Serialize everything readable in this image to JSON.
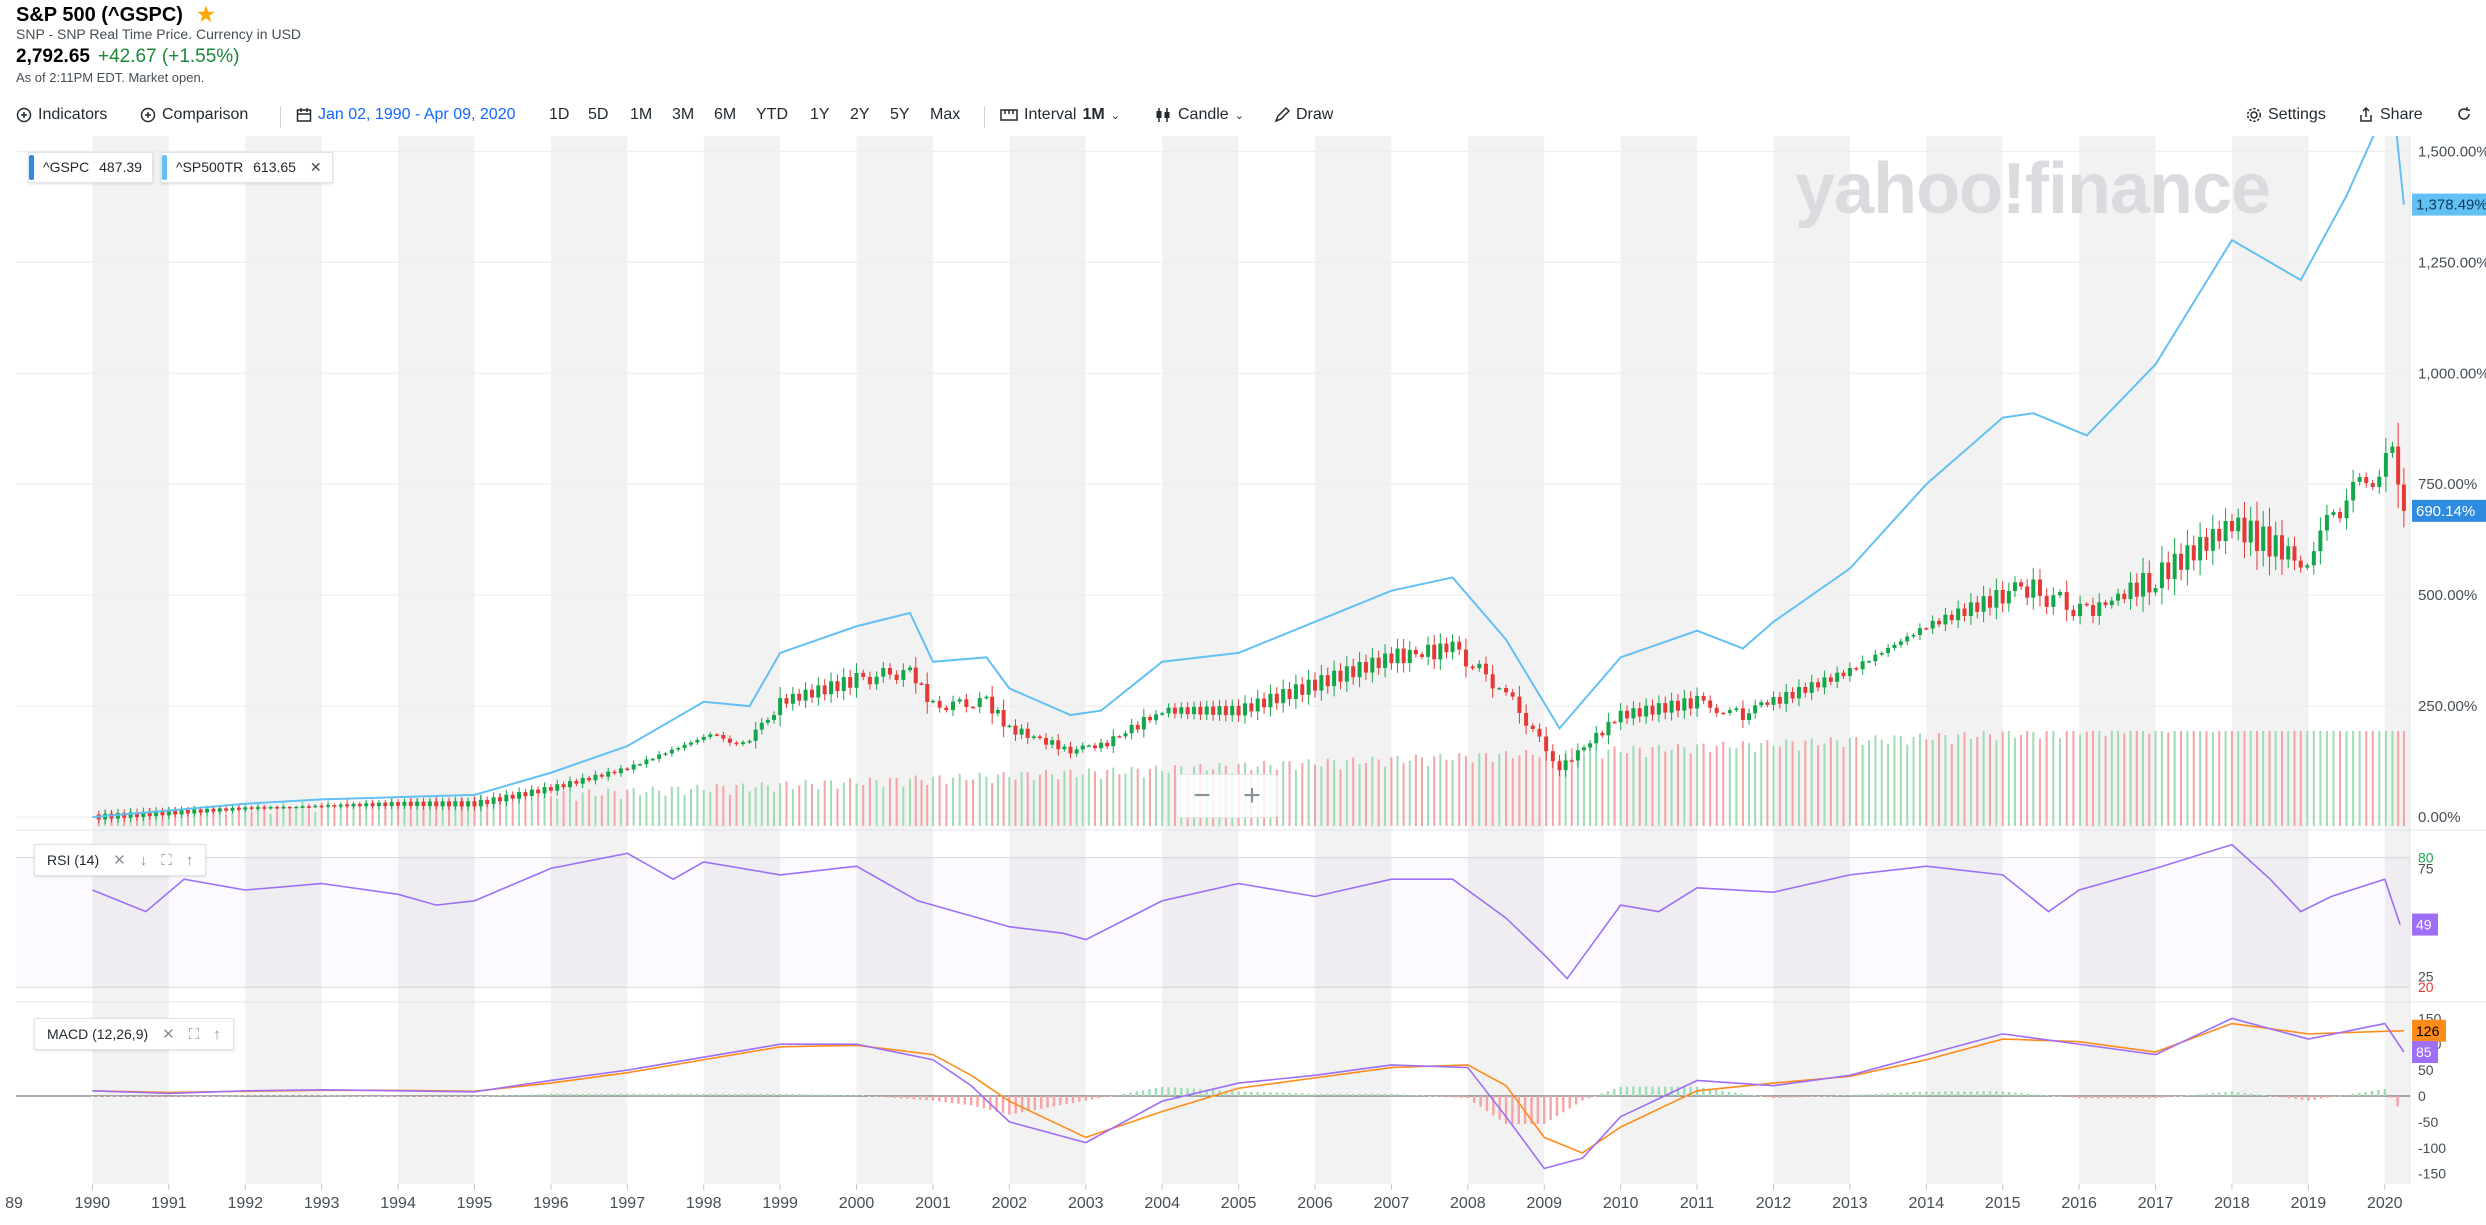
{
  "header": {
    "title": "S&P 500 (^GSPC)",
    "subtitle": "SNP - SNP Real Time Price. Currency in USD",
    "price": "2,792.65",
    "change": "+42.67 (+1.55%)",
    "as_of": "As of 2:11PM EDT. Market open."
  },
  "toolbar": {
    "indicators": "Indicators",
    "comparison": "Comparison",
    "date_range": "Jan 02, 1990 - Apr 09, 2020",
    "ranges": [
      "1D",
      "5D",
      "1M",
      "3M",
      "6M",
      "YTD",
      "1Y",
      "2Y",
      "5Y",
      "Max"
    ],
    "interval_label": "Interval",
    "interval_value": "1M",
    "chart_type": "Candle",
    "draw": "Draw",
    "settings": "Settings",
    "share": "Share"
  },
  "legend": {
    "gspc": {
      "symbol": "^GSPC",
      "value": "487.39",
      "close": ""
    },
    "sp500tr": {
      "symbol": "^SP500TR",
      "value": "613.65",
      "close": "✕"
    }
  },
  "indicators": {
    "rsi": {
      "label": "RSI (14)"
    },
    "macd": {
      "label": "MACD (12,26,9)"
    }
  },
  "watermark": "yahoo!finance",
  "zoom": {
    "minus": "−",
    "plus": "+"
  },
  "colors": {
    "gspc": "#2f8bdf",
    "sp500tr": "#63c0f2",
    "rsi": "#9f6ef7",
    "macd": "#9f6ef7",
    "signal": "#ff8c1a",
    "up": "#14a64b",
    "down": "#e53935",
    "grid": "#f2f2f2"
  },
  "chart_data": {
    "type": "line",
    "x_axis": {
      "tick_labels": [
        "1990",
        "1991",
        "1992",
        "1993",
        "1994",
        "1995",
        "1996",
        "1997",
        "1998",
        "1999",
        "2000",
        "2001",
        "2002",
        "2003",
        "2004",
        "2005",
        "2006",
        "2007",
        "2008",
        "2009",
        "2010",
        "2011",
        "2012",
        "2013",
        "2014",
        "2015",
        "2016",
        "2017",
        "2018",
        "2019",
        "2020"
      ],
      "first_label_shown": "89"
    },
    "price_panel": {
      "y_unit": "percent change",
      "y_ticks": [
        0,
        250,
        500,
        750,
        1000,
        1250,
        1500
      ],
      "y_tick_labels": [
        "0.00%",
        "250.00%",
        "500.00%",
        "750.00%",
        "1,000.00%",
        "1,250.00%",
        "1,500.00%"
      ],
      "ylim": [
        -20,
        1530
      ],
      "series": [
        {
          "name": "^GSPC",
          "style": "candle",
          "last_label": "690.14%",
          "x": [
            1990,
            1991,
            1992,
            1993,
            1994,
            1995,
            1996,
            1997,
            1998,
            1998.6,
            1999,
            2000,
            2000.7,
            2001,
            2001.7,
            2002,
            2002.8,
            2003.2,
            2004,
            2005,
            2006,
            2007,
            2007.8,
            2008.5,
            2009.2,
            2010,
            2011,
            2011.6,
            2012,
            2013,
            2014,
            2015,
            2015.4,
            2016.1,
            2017,
            2018,
            2018.9,
            2019.5,
            2020.1,
            2020.25
          ],
          "y": [
            0,
            10,
            20,
            25,
            30,
            30,
            65,
            110,
            180,
            170,
            260,
            310,
            330,
            250,
            260,
            200,
            150,
            160,
            240,
            240,
            300,
            360,
            380,
            280,
            110,
            230,
            260,
            230,
            260,
            330,
            430,
            500,
            510,
            460,
            540,
            660,
            580,
            700,
            840,
            690
          ]
        },
        {
          "name": "^SP500TR",
          "style": "line",
          "last_label": "1,378.49%",
          "x": [
            1990,
            1991,
            1992,
            1993,
            1994,
            1995,
            1996,
            1997,
            1998,
            1998.6,
            1999,
            2000,
            2000.7,
            2001,
            2001.7,
            2002,
            2002.8,
            2003.2,
            2004,
            2005,
            2006,
            2007,
            2007.8,
            2008.5,
            2009.2,
            2010,
            2011,
            2011.6,
            2012,
            2013,
            2014,
            2015,
            2015.4,
            2016.1,
            2017,
            2018,
            2018.9,
            2019.5,
            2020.1,
            2020.25
          ],
          "y": [
            0,
            15,
            30,
            40,
            45,
            50,
            100,
            160,
            260,
            250,
            370,
            430,
            460,
            350,
            360,
            290,
            230,
            240,
            350,
            370,
            440,
            510,
            540,
            400,
            200,
            360,
            420,
            380,
            440,
            560,
            750,
            900,
            910,
            860,
            1020,
            1300,
            1210,
            1400,
            1630,
            1380
          ]
        }
      ]
    },
    "rsi_panel": {
      "name": "RSI (14)",
      "y_ticks": [
        20,
        25,
        75,
        80
      ],
      "ylim": [
        15,
        90
      ],
      "last_label": "49",
      "x": [
        1990,
        1990.7,
        1991.2,
        1992,
        1993,
        1994,
        1994.5,
        1995,
        1996,
        1997,
        1997.6,
        1998,
        1999,
        2000,
        2000.8,
        2001.3,
        2002,
        2002.7,
        2003,
        2004,
        2005,
        2006,
        2007,
        2007.8,
        2008.5,
        2009,
        2009.3,
        2010,
        2010.5,
        2011,
        2012,
        2013,
        2014,
        2015,
        2015.6,
        2016,
        2017,
        2018,
        2018.5,
        2018.9,
        2019.3,
        2020,
        2020.2
      ],
      "y": [
        65,
        55,
        70,
        65,
        68,
        63,
        58,
        60,
        75,
        82,
        70,
        78,
        72,
        76,
        60,
        55,
        48,
        45,
        42,
        60,
        68,
        62,
        70,
        70,
        52,
        35,
        24,
        58,
        55,
        66,
        64,
        72,
        76,
        72,
        55,
        65,
        75,
        86,
        70,
        55,
        62,
        70,
        49
      ]
    },
    "macd_panel": {
      "name": "MACD (12,26,9)",
      "y_ticks": [
        -150,
        -100,
        -50,
        0,
        50,
        100,
        150
      ],
      "ylim": [
        -170,
        170
      ],
      "last_labels": [
        "126",
        "85"
      ],
      "x": [
        1990,
        1991,
        1992,
        1993,
        1994,
        1995,
        1996,
        1997,
        1998,
        1999,
        2000,
        2001,
        2001.5,
        2002,
        2003,
        2004,
        2005,
        2006,
        2007,
        2008,
        2008.5,
        2009,
        2009.5,
        2010,
        2011,
        2012,
        2013,
        2014,
        2015,
        2016,
        2017,
        2018,
        2019,
        2020,
        2020.25
      ],
      "macd": [
        10,
        5,
        10,
        12,
        10,
        8,
        30,
        50,
        75,
        100,
        100,
        70,
        20,
        -50,
        -90,
        -10,
        25,
        40,
        60,
        55,
        -40,
        -140,
        -120,
        -40,
        30,
        20,
        40,
        80,
        120,
        100,
        80,
        150,
        110,
        140,
        85
      ],
      "signal": [
        10,
        7,
        9,
        11,
        11,
        9,
        25,
        45,
        70,
        95,
        98,
        80,
        40,
        -10,
        -80,
        -30,
        15,
        35,
        55,
        60,
        20,
        -80,
        -110,
        -60,
        10,
        25,
        38,
        70,
        110,
        105,
        85,
        140,
        120,
        125,
        126
      ]
    }
  }
}
